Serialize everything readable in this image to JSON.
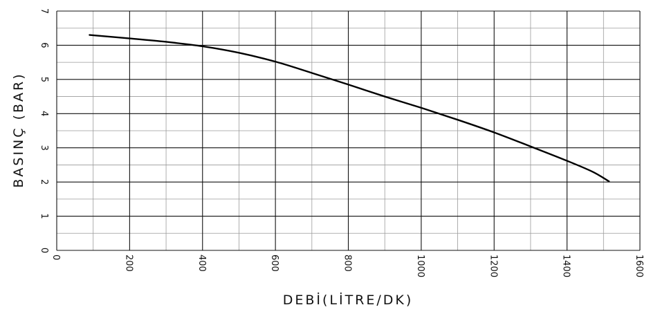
{
  "chart_data": {
    "type": "line",
    "title": "",
    "xlabel": "DEBİ(LİTRE/DK)",
    "ylabel": "BASINÇ (BAR)",
    "xlim": [
      0,
      1600
    ],
    "ylim": [
      0,
      7
    ],
    "x_ticks": [
      "0",
      "200",
      "400",
      "600",
      "800",
      "1000",
      "1200",
      "1400",
      "1600"
    ],
    "y_ticks": [
      "0",
      "1",
      "2",
      "3",
      "4",
      "5",
      "6",
      "7"
    ],
    "grid": true,
    "series": [
      {
        "color": "#000000",
        "x": [
          90,
          200,
          300,
          400,
          500,
          600,
          700,
          800,
          900,
          1000,
          1100,
          1200,
          1300,
          1400,
          1470,
          1515
        ],
        "y": [
          6.3,
          6.2,
          6.1,
          5.97,
          5.78,
          5.52,
          5.19,
          4.85,
          4.5,
          4.17,
          3.82,
          3.45,
          3.04,
          2.62,
          2.3,
          2.02
        ]
      }
    ]
  }
}
